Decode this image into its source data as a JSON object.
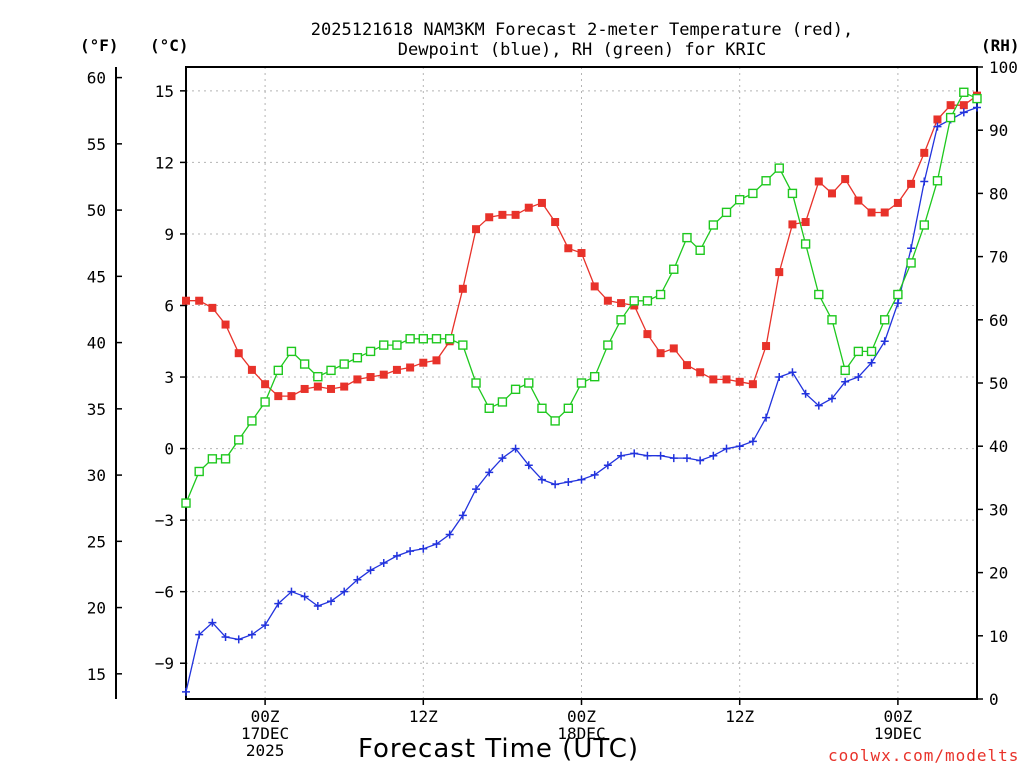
{
  "title": {
    "line1": "2025121618 NAM3KM Forecast 2-meter Temperature (red),",
    "line2": "Dewpoint (blue), RH (green) for KRIC"
  },
  "units": {
    "fahrenheit": "(°F)",
    "celsius": "(°C)",
    "rh": "(RH)"
  },
  "xlabel": "Forecast Time (UTC)",
  "credit": "coolwx.com/modelts",
  "chart_data": {
    "type": "line",
    "title": "2025121618 NAM3KM Forecast 2-meter Temperature (red), Dewpoint (blue), RH (green) for KRIC",
    "xlabel": "Forecast Time (UTC)",
    "x_unit": "forecast hour (0 = 2025-12-16 18Z)",
    "xlim": [
      0,
      60
    ],
    "x": [
      0,
      1,
      2,
      3,
      4,
      5,
      6,
      7,
      8,
      9,
      10,
      11,
      12,
      13,
      14,
      15,
      16,
      17,
      18,
      19,
      20,
      21,
      22,
      23,
      24,
      25,
      26,
      27,
      28,
      29,
      30,
      31,
      32,
      33,
      34,
      35,
      36,
      37,
      38,
      39,
      40,
      41,
      42,
      43,
      44,
      45,
      46,
      47,
      48,
      49,
      50,
      51,
      52,
      53,
      54,
      55,
      56,
      57,
      58,
      59,
      60
    ],
    "x_ticks": [
      {
        "x": 6,
        "lines": [
          "00Z",
          "17DEC",
          "2025"
        ]
      },
      {
        "x": 18,
        "lines": [
          "12Z"
        ]
      },
      {
        "x": 30,
        "lines": [
          "00Z",
          "18DEC"
        ]
      },
      {
        "x": 42,
        "lines": [
          "12Z"
        ]
      },
      {
        "x": 54,
        "lines": [
          "00Z",
          "19DEC"
        ]
      }
    ],
    "y_left_c": {
      "label": "(°C)",
      "lim": [
        -10.5,
        16.0
      ],
      "ticks": [
        -9,
        -6,
        -3,
        0,
        3,
        6,
        9,
        12,
        15
      ]
    },
    "y_left_f": {
      "label": "(°F)",
      "lim": [
        13.1,
        60.8
      ],
      "ticks": [
        15,
        20,
        25,
        30,
        35,
        40,
        45,
        50,
        55,
        60
      ]
    },
    "y_right_rh": {
      "label": "(RH)",
      "lim": [
        0,
        100
      ],
      "ticks": [
        0,
        10,
        20,
        30,
        40,
        50,
        60,
        70,
        80,
        90,
        100
      ]
    },
    "grid": true,
    "series": [
      {
        "name": "2-meter Temperature",
        "color": "#e8322a",
        "axis": "celsius",
        "marker": "filled-square",
        "values": [
          6.2,
          6.2,
          5.9,
          5.2,
          4.0,
          3.3,
          2.7,
          2.2,
          2.2,
          2.5,
          2.6,
          2.5,
          2.6,
          2.9,
          3.0,
          3.1,
          3.3,
          3.4,
          3.6,
          3.7,
          4.5,
          6.7,
          9.2,
          9.7,
          9.8,
          9.8,
          10.1,
          10.3,
          9.5,
          8.4,
          8.2,
          6.8,
          6.2,
          6.1,
          6.0,
          4.8,
          4.0,
          4.2,
          3.5,
          3.2,
          2.9,
          2.9,
          2.8,
          2.7,
          4.3,
          7.4,
          9.4,
          9.5,
          11.2,
          10.7,
          11.3,
          10.4,
          9.9,
          9.9,
          10.3,
          11.1,
          12.4,
          13.8,
          14.4,
          14.4,
          14.8
        ]
      },
      {
        "name": "Dewpoint",
        "color": "#2233dd",
        "axis": "celsius",
        "marker": "plus",
        "values": [
          -10.2,
          -7.8,
          -7.3,
          -7.9,
          -8.0,
          -7.8,
          -7.4,
          -6.5,
          -6.0,
          -6.2,
          -6.6,
          -6.4,
          -6.0,
          -5.5,
          -5.1,
          -4.8,
          -4.5,
          -4.3,
          -4.2,
          -4.0,
          -3.6,
          -2.8,
          -1.7,
          -1.0,
          -0.4,
          0.0,
          -0.7,
          -1.3,
          -1.5,
          -1.4,
          -1.3,
          -1.1,
          -0.7,
          -0.3,
          -0.2,
          -0.3,
          -0.3,
          -0.4,
          -0.4,
          -0.5,
          -0.3,
          0.0,
          0.1,
          0.3,
          1.3,
          3.0,
          3.2,
          2.3,
          1.8,
          2.1,
          2.8,
          3.0,
          3.6,
          4.5,
          6.1,
          8.4,
          11.2,
          13.5,
          13.8,
          14.1,
          14.3
        ]
      },
      {
        "name": "RH",
        "color": "#1ec81e",
        "axis": "rh",
        "marker": "open-square",
        "values": [
          31,
          36,
          38,
          38,
          41,
          44,
          47,
          52,
          55,
          53,
          51,
          52,
          53,
          54,
          55,
          56,
          56,
          57,
          57,
          57,
          57,
          56,
          50,
          46,
          47,
          49,
          50,
          46,
          44,
          46,
          50,
          51,
          56,
          60,
          63,
          63,
          64,
          68,
          73,
          71,
          75,
          77,
          79,
          80,
          82,
          84,
          80,
          72,
          64,
          60,
          52,
          55,
          55,
          60,
          64,
          69,
          75,
          82,
          92,
          96,
          95
        ]
      }
    ]
  }
}
